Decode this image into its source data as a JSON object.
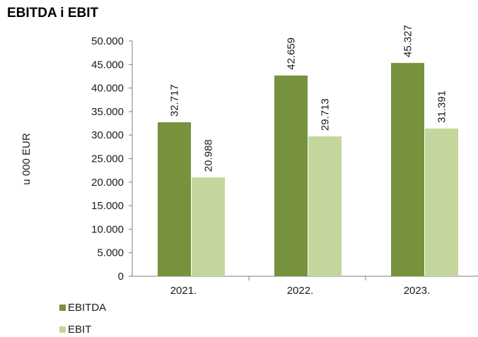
{
  "chart_data": {
    "type": "bar",
    "title": "EBITDA i EBIT",
    "ylabel": "u 000 EUR",
    "xlabel": "",
    "categories": [
      "2021.",
      "2022.",
      "2023."
    ],
    "series": [
      {
        "name": "EBITDA",
        "values": [
          32717,
          42659,
          45327
        ],
        "labels": [
          "32.717",
          "42.659",
          "45.327"
        ],
        "color": "#76923c"
      },
      {
        "name": "EBIT",
        "values": [
          20988,
          29713,
          31391
        ],
        "labels": [
          "20.988",
          "29.713",
          "31.391"
        ],
        "color": "#c3d69b"
      }
    ],
    "ylim": [
      0,
      50000
    ],
    "yticks": [
      {
        "value": 0,
        "label": "0"
      },
      {
        "value": 5000,
        "label": "5.000"
      },
      {
        "value": 10000,
        "label": "10.000"
      },
      {
        "value": 15000,
        "label": "15.000"
      },
      {
        "value": 20000,
        "label": "20.000"
      },
      {
        "value": 25000,
        "label": "25.000"
      },
      {
        "value": 30000,
        "label": "30.000"
      },
      {
        "value": 35000,
        "label": "35.000"
      },
      {
        "value": 40000,
        "label": "40.000"
      },
      {
        "value": 45000,
        "label": "45.000"
      },
      {
        "value": 50000,
        "label": "50.000"
      }
    ],
    "grid": false,
    "legend": "bottom-left"
  }
}
